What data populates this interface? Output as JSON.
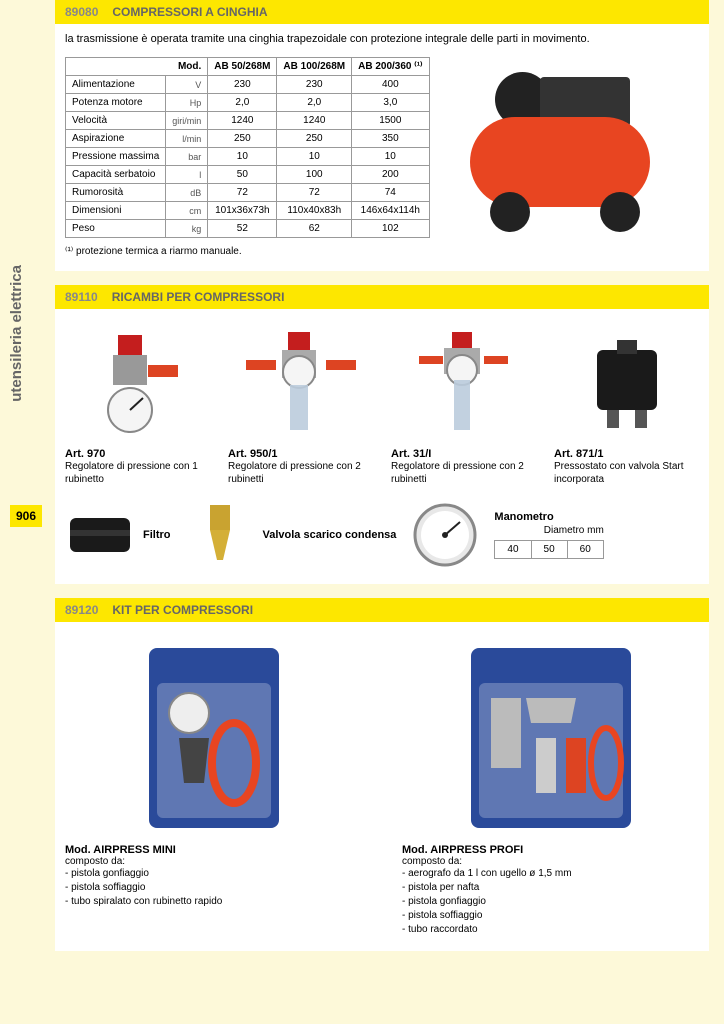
{
  "sidebar": {
    "category": "utensileria elettrica",
    "page_number": "906"
  },
  "section1": {
    "code": "89080",
    "title": "COMPRESSORI A CINGHIA",
    "intro": "la trasmissione è operata tramite una cinghia trapezoidale con protezione integrale delle parti in movimento.",
    "col_header": "Mod.",
    "models": [
      "AB 50/268M",
      "AB 100/268M",
      "AB 200/360 ⁽¹⁾"
    ],
    "rows": [
      {
        "label": "Alimentazione",
        "unit": "V",
        "values": [
          "230",
          "230",
          "400"
        ]
      },
      {
        "label": "Potenza motore",
        "unit": "Hp",
        "values": [
          "2,0",
          "2,0",
          "3,0"
        ]
      },
      {
        "label": "Velocità",
        "unit": "giri/min",
        "values": [
          "1240",
          "1240",
          "1500"
        ]
      },
      {
        "label": "Aspirazione",
        "unit": "l/min",
        "values": [
          "250",
          "250",
          "350"
        ]
      },
      {
        "label": "Pressione massima",
        "unit": "bar",
        "values": [
          "10",
          "10",
          "10"
        ]
      },
      {
        "label": "Capacità serbatoio",
        "unit": "l",
        "values": [
          "50",
          "100",
          "200"
        ]
      },
      {
        "label": "Rumorosità",
        "unit": "dB",
        "values": [
          "72",
          "72",
          "74"
        ]
      },
      {
        "label": "Dimensioni",
        "unit": "cm",
        "values": [
          "101x36x73h",
          "110x40x83h",
          "146x64x114h"
        ]
      },
      {
        "label": "Peso",
        "unit": "kg",
        "values": [
          "52",
          "62",
          "102"
        ]
      }
    ],
    "footnote": "⁽¹⁾ protezione termica a riarmo manuale.",
    "image_colors": {
      "tank": "#e84521",
      "motor": "#333333",
      "wheel": "#222222"
    }
  },
  "section2": {
    "code": "89110",
    "title": "RICAMBI PER COMPRESSORI",
    "parts_row1": [
      {
        "artno": "Art. 970",
        "desc": "Regolatore di pressione con 1 rubinetto"
      },
      {
        "artno": "Art. 950/1",
        "desc": "Regolatore di pressione con 2 rubinetti"
      },
      {
        "artno": "Art. 31/I",
        "desc": "Regolatore di pressione con 2 rubinetti"
      },
      {
        "artno": "Art. 871/1",
        "desc": "Pressostato con valvola Start incorporata"
      }
    ],
    "parts_row2": [
      {
        "label": "Filtro"
      },
      {
        "label": "Valvola scarico condensa"
      }
    ],
    "manometer": {
      "label": "Manometro",
      "sub": "Diametro mm",
      "sizes": [
        "40",
        "50",
        "60"
      ]
    }
  },
  "section3": {
    "code": "89120",
    "title": "KIT PER COMPRESSORI",
    "kits": [
      {
        "title": "Mod. AIRPRESS MINI",
        "sub": "composto da:",
        "items": [
          "pistola gonfiaggio",
          "pistola soffiaggio",
          "tubo spiralato con rubinetto rapido"
        ]
      },
      {
        "title": "Mod. AIRPRESS PROFI",
        "sub": "composto da:",
        "items": [
          "aerografo da 1 l con ugello ø 1,5 mm",
          "pistola per nafta",
          "pistola gonfiaggio",
          "pistola soffiaggio",
          "tubo raccordato"
        ]
      }
    ]
  },
  "colors": {
    "yellow": "#fde700",
    "page_bg": "#fdf9d9",
    "border": "#999999",
    "text_grey": "#666666"
  }
}
